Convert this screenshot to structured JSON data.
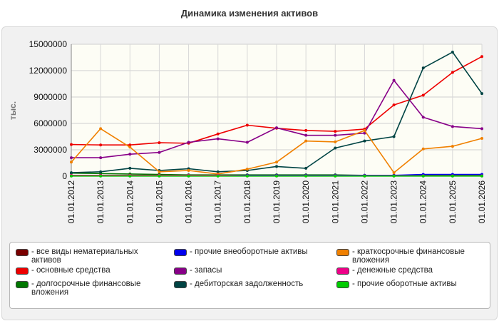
{
  "title": "Динамика изменения активов",
  "chart_data": {
    "type": "line",
    "title": "Динамика изменения активов",
    "ylabel": "тыс.",
    "xlabel": "",
    "ylim": [
      0,
      15000000
    ],
    "yticks": [
      0,
      3000000,
      6000000,
      9000000,
      12000000,
      15000000
    ],
    "grid": true,
    "legend_position": "bottom",
    "categories": [
      "01.01.2012",
      "01.01.2013",
      "01.01.2014",
      "01.01.2015",
      "01.01.2016",
      "01.01.2017",
      "01.01.2018",
      "01.01.2019",
      "01.01.2020",
      "01.01.2021",
      "01.01.2022",
      "01.01.2023",
      "01.01.2024",
      "01.01.2025",
      "01.01.2026"
    ],
    "series": [
      {
        "name": "все виды нематериальных активов",
        "color": "#7a0000",
        "values": [
          30000,
          30000,
          30000,
          30000,
          30000,
          30000,
          30000,
          30000,
          30000,
          30000,
          30000,
          30000,
          30000,
          30000,
          30000
        ]
      },
      {
        "name": "основные средства",
        "color": "#ee0000",
        "values": [
          3600000,
          3550000,
          3550000,
          3800000,
          3750000,
          4800000,
          5800000,
          5450000,
          5200000,
          5100000,
          5350000,
          8100000,
          9200000,
          11800000,
          13600000
        ]
      },
      {
        "name": "долгосрочные финансовые вложения",
        "color": "#007700",
        "values": [
          350000,
          300000,
          250000,
          200000,
          150000,
          150000,
          150000,
          150000,
          150000,
          150000,
          100000,
          100000,
          100000,
          100000,
          100000
        ]
      },
      {
        "name": "прочие внеоборотные активы",
        "color": "#0000ee",
        "values": [
          50000,
          50000,
          50000,
          50000,
          100000,
          100000,
          100000,
          100000,
          100000,
          100000,
          100000,
          100000,
          200000,
          200000,
          200000
        ]
      },
      {
        "name": "запасы",
        "color": "#880088",
        "values": [
          2100000,
          2100000,
          2500000,
          2700000,
          3850000,
          4250000,
          3850000,
          5500000,
          4650000,
          4650000,
          4900000,
          10900000,
          6700000,
          5650000,
          5400000
        ]
      },
      {
        "name": "дебиторская задолженность",
        "color": "#004444",
        "values": [
          400000,
          500000,
          900000,
          650000,
          850000,
          500000,
          650000,
          1100000,
          900000,
          3200000,
          4000000,
          4500000,
          12300000,
          14100000,
          9400000
        ]
      },
      {
        "name": "краткосрочные финансовые вложения",
        "color": "#f08000",
        "values": [
          1600000,
          5400000,
          3300000,
          500000,
          650000,
          250000,
          800000,
          1600000,
          4000000,
          3900000,
          5200000,
          400000,
          3100000,
          3400000,
          4300000
        ]
      },
      {
        "name": "денежные средства",
        "color": "#ee0088",
        "values": [
          100000,
          100000,
          100000,
          100000,
          100000,
          100000,
          50000,
          50000,
          50000,
          50000,
          50000,
          50000,
          50000,
          50000,
          50000
        ]
      },
      {
        "name": "прочие оборотные активы",
        "color": "#00cc00",
        "values": [
          20000,
          20000,
          20000,
          20000,
          20000,
          20000,
          20000,
          20000,
          20000,
          20000,
          20000,
          20000,
          20000,
          20000,
          20000
        ]
      }
    ]
  },
  "legend_order": [
    0,
    3,
    6,
    1,
    4,
    7,
    2,
    5,
    8
  ]
}
